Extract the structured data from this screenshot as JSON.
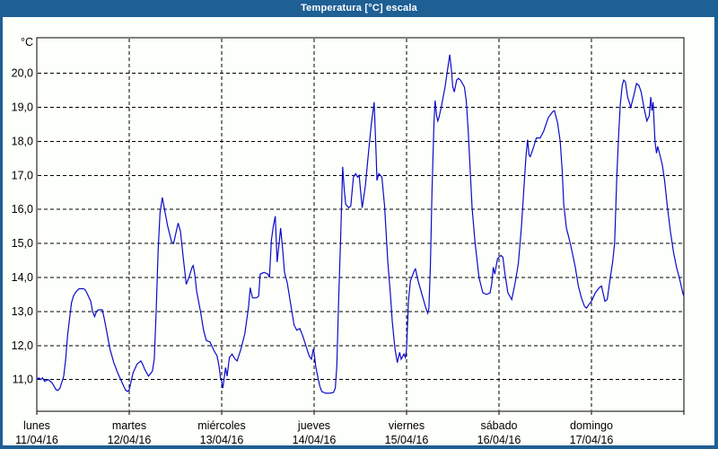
{
  "window": {
    "title": "Temperatura [°C] escala",
    "frame_color": "#1E5F94",
    "background": "#FDFFFA"
  },
  "chart_data": {
    "type": "line",
    "title": "Temperatura [°C] escala",
    "unit_label": "°C",
    "line_color": "#0B0BCB",
    "grid_color": "#000000",
    "x_hours_range": [
      0,
      168
    ],
    "ylim": [
      10.05,
      21.05
    ],
    "grid": true,
    "y_ticks": [
      {
        "value": 11,
        "label": "11,0"
      },
      {
        "value": 12,
        "label": "12,0"
      },
      {
        "value": 13,
        "label": "13,0"
      },
      {
        "value": 14,
        "label": "14,0"
      },
      {
        "value": 15,
        "label": "15,0"
      },
      {
        "value": 16,
        "label": "16,0"
      },
      {
        "value": 17,
        "label": "17,0"
      },
      {
        "value": 18,
        "label": "18,0"
      },
      {
        "value": 19,
        "label": "19,0"
      },
      {
        "value": 20,
        "label": "20,0"
      }
    ],
    "days": [
      {
        "name": "lunes",
        "date": "11/04/16"
      },
      {
        "name": "martes",
        "date": "12/04/16"
      },
      {
        "name": "miércoles",
        "date": "13/04/16"
      },
      {
        "name": "jueves",
        "date": "14/04/16"
      },
      {
        "name": "viernes",
        "date": "15/04/16"
      },
      {
        "name": "sábado",
        "date": "16/04/16"
      },
      {
        "name": "domingo",
        "date": "17/04/16"
      }
    ],
    "points": [
      [
        0,
        11.0
      ],
      [
        0.5,
        11.05
      ],
      [
        1,
        11.0
      ],
      [
        1.5,
        11.05
      ],
      [
        2,
        10.95
      ],
      [
        3,
        11.0
      ],
      [
        4,
        10.9
      ],
      [
        5,
        10.7
      ],
      [
        5.5,
        10.68
      ],
      [
        6,
        10.75
      ],
      [
        7,
        11.1
      ],
      [
        7.5,
        11.6
      ],
      [
        8,
        12.3
      ],
      [
        9,
        13.25
      ],
      [
        9.5,
        13.45
      ],
      [
        10,
        13.55
      ],
      [
        10.5,
        13.62
      ],
      [
        11,
        13.67
      ],
      [
        12,
        13.67
      ],
      [
        12.5,
        13.65
      ],
      [
        13,
        13.55
      ],
      [
        14,
        13.3
      ],
      [
        14.5,
        13.0
      ],
      [
        15,
        12.85
      ],
      [
        15.5,
        13.0
      ],
      [
        16,
        13.05
      ],
      [
        17,
        13.05
      ],
      [
        17.5,
        12.8
      ],
      [
        18,
        12.5
      ],
      [
        19,
        11.9
      ],
      [
        20,
        11.5
      ],
      [
        21,
        11.2
      ],
      [
        22,
        10.95
      ],
      [
        23,
        10.7
      ],
      [
        23.5,
        10.65
      ],
      [
        24,
        10.7
      ],
      [
        24.5,
        10.95
      ],
      [
        25,
        11.2
      ],
      [
        26,
        11.45
      ],
      [
        27,
        11.55
      ],
      [
        27.5,
        11.45
      ],
      [
        28,
        11.3
      ],
      [
        29,
        11.1
      ],
      [
        30,
        11.25
      ],
      [
        30.5,
        11.6
      ],
      [
        31,
        13.0
      ],
      [
        31.5,
        14.8
      ],
      [
        32,
        15.9
      ],
      [
        32.6,
        16.35
      ],
      [
        33,
        16.1
      ],
      [
        34,
        15.5
      ],
      [
        35,
        15.05
      ],
      [
        35.5,
        15.0
      ],
      [
        36,
        15.25
      ],
      [
        36.7,
        15.6
      ],
      [
        37.3,
        15.35
      ],
      [
        38,
        14.6
      ],
      [
        38.8,
        13.8
      ],
      [
        39.5,
        14.0
      ],
      [
        40.3,
        14.3
      ],
      [
        40.6,
        14.35
      ],
      [
        41,
        14.1
      ],
      [
        41.5,
        13.6
      ],
      [
        42.5,
        13.0
      ],
      [
        43.3,
        12.45
      ],
      [
        44,
        12.15
      ],
      [
        45,
        12.1
      ],
      [
        46,
        11.85
      ],
      [
        46.8,
        11.7
      ],
      [
        47.3,
        11.4
      ],
      [
        47.7,
        11.05
      ],
      [
        48,
        10.95
      ],
      [
        48.3,
        10.75
      ],
      [
        49,
        11.35
      ],
      [
        49.4,
        11.1
      ],
      [
        50,
        11.65
      ],
      [
        50.7,
        11.75
      ],
      [
        51.5,
        11.6
      ],
      [
        52,
        11.55
      ],
      [
        53,
        11.9
      ],
      [
        54,
        12.35
      ],
      [
        55,
        13.15
      ],
      [
        55.4,
        13.7
      ],
      [
        56,
        13.4
      ],
      [
        57,
        13.4
      ],
      [
        57.6,
        13.45
      ],
      [
        58,
        14.1
      ],
      [
        59,
        14.15
      ],
      [
        60,
        14.1
      ],
      [
        60.4,
        14.0
      ],
      [
        60.9,
        15.1
      ],
      [
        61.4,
        15.5
      ],
      [
        61.9,
        15.8
      ],
      [
        62.4,
        14.45
      ],
      [
        63.3,
        15.45
      ],
      [
        63.9,
        14.75
      ],
      [
        64.3,
        14.15
      ],
      [
        65,
        13.85
      ],
      [
        66,
        13.15
      ],
      [
        66.8,
        12.6
      ],
      [
        67.5,
        12.45
      ],
      [
        68.3,
        12.5
      ],
      [
        69,
        12.3
      ],
      [
        70,
        11.95
      ],
      [
        70.7,
        11.7
      ],
      [
        71.3,
        11.6
      ],
      [
        71.8,
        11.9
      ],
      [
        72,
        11.8
      ],
      [
        72.4,
        11.4
      ],
      [
        73,
        11.05
      ],
      [
        73.5,
        10.8
      ],
      [
        74,
        10.65
      ],
      [
        75,
        10.6
      ],
      [
        76,
        10.6
      ],
      [
        77,
        10.62
      ],
      [
        77.5,
        10.75
      ],
      [
        77.9,
        11.4
      ],
      [
        78.4,
        13.5
      ],
      [
        78.9,
        15.2
      ],
      [
        79.4,
        17.25
      ],
      [
        79.8,
        16.6
      ],
      [
        80.2,
        16.15
      ],
      [
        81,
        16.05
      ],
      [
        81.5,
        16.1
      ],
      [
        82.2,
        16.95
      ],
      [
        82.8,
        17.05
      ],
      [
        83.3,
        16.95
      ],
      [
        83.7,
        17.0
      ],
      [
        84.1,
        16.5
      ],
      [
        84.5,
        16.05
      ],
      [
        85.3,
        16.7
      ],
      [
        86.1,
        17.65
      ],
      [
        86.9,
        18.55
      ],
      [
        87.6,
        19.15
      ],
      [
        88.1,
        17.6
      ],
      [
        88.3,
        16.85
      ],
      [
        88.8,
        17.05
      ],
      [
        89.6,
        16.95
      ],
      [
        90.3,
        16.1
      ],
      [
        91.1,
        14.5
      ],
      [
        91.8,
        13.5
      ],
      [
        92.3,
        12.7
      ],
      [
        93,
        11.9
      ],
      [
        93.6,
        11.5
      ],
      [
        94.2,
        11.8
      ],
      [
        94.6,
        11.6
      ],
      [
        95.3,
        11.75
      ],
      [
        95.7,
        11.65
      ],
      [
        96,
        11.9
      ],
      [
        96.5,
        13.3
      ],
      [
        97,
        13.9
      ],
      [
        98,
        14.2
      ],
      [
        98.3,
        14.25
      ],
      [
        99,
        13.9
      ],
      [
        100,
        13.5
      ],
      [
        101,
        13.1
      ],
      [
        101.5,
        12.95
      ],
      [
        101.8,
        13.1
      ],
      [
        102.2,
        14.4
      ],
      [
        102.6,
        16.5
      ],
      [
        103.1,
        18.5
      ],
      [
        103.4,
        19.2
      ],
      [
        103.8,
        18.75
      ],
      [
        104.1,
        18.6
      ],
      [
        104.4,
        18.7
      ],
      [
        105,
        19.0
      ],
      [
        106,
        19.6
      ],
      [
        107.2,
        20.55
      ],
      [
        107.6,
        20.15
      ],
      [
        108,
        19.6
      ],
      [
        108.4,
        19.45
      ],
      [
        109,
        19.8
      ],
      [
        109.5,
        19.85
      ],
      [
        110,
        19.8
      ],
      [
        111,
        19.6
      ],
      [
        111.5,
        19.2
      ],
      [
        112,
        18.3
      ],
      [
        112.5,
        17.2
      ],
      [
        113,
        16.05
      ],
      [
        113.8,
        15.0
      ],
      [
        114.8,
        14.0
      ],
      [
        115.8,
        13.55
      ],
      [
        116.8,
        13.5
      ],
      [
        117.7,
        13.55
      ],
      [
        118.1,
        13.8
      ],
      [
        118.5,
        14.3
      ],
      [
        118.9,
        14.1
      ],
      [
        119.6,
        14.55
      ],
      [
        120,
        14.6
      ],
      [
        120.5,
        14.65
      ],
      [
        121,
        14.6
      ],
      [
        121.5,
        14.15
      ],
      [
        122.3,
        13.55
      ],
      [
        123.3,
        13.35
      ],
      [
        124.2,
        13.85
      ],
      [
        125,
        14.4
      ],
      [
        125.8,
        15.45
      ],
      [
        126.6,
        16.85
      ],
      [
        127,
        17.55
      ],
      [
        127.4,
        18.05
      ],
      [
        127.8,
        17.6
      ],
      [
        128.1,
        17.55
      ],
      [
        128.9,
        17.8
      ],
      [
        129.7,
        18.1
      ],
      [
        130.7,
        18.1
      ],
      [
        131.6,
        18.3
      ],
      [
        132.8,
        18.7
      ],
      [
        134,
        18.88
      ],
      [
        134.4,
        18.9
      ],
      [
        135.2,
        18.55
      ],
      [
        135.9,
        18.0
      ],
      [
        136.4,
        17.15
      ],
      [
        136.8,
        16.15
      ],
      [
        137.5,
        15.45
      ],
      [
        138.3,
        15.1
      ],
      [
        139,
        14.75
      ],
      [
        139.8,
        14.3
      ],
      [
        140.6,
        13.75
      ],
      [
        141.4,
        13.4
      ],
      [
        142.2,
        13.15
      ],
      [
        142.7,
        13.1
      ],
      [
        143.3,
        13.2
      ],
      [
        144,
        13.3
      ],
      [
        145,
        13.55
      ],
      [
        146,
        13.7
      ],
      [
        146.6,
        13.75
      ],
      [
        147.5,
        13.3
      ],
      [
        148.1,
        13.35
      ],
      [
        148.7,
        13.85
      ],
      [
        149.5,
        14.45
      ],
      [
        150,
        15.0
      ],
      [
        150.6,
        17.0
      ],
      [
        151.1,
        18.3
      ],
      [
        151.5,
        19.1
      ],
      [
        152,
        19.65
      ],
      [
        152.4,
        19.8
      ],
      [
        152.8,
        19.75
      ],
      [
        153.4,
        19.3
      ],
      [
        154.2,
        19.0
      ],
      [
        155,
        19.35
      ],
      [
        155.7,
        19.7
      ],
      [
        156.3,
        19.65
      ],
      [
        156.9,
        19.45
      ],
      [
        157.7,
        18.95
      ],
      [
        158.4,
        18.6
      ],
      [
        159,
        18.75
      ],
      [
        159.4,
        19.3
      ],
      [
        159.7,
        18.9
      ],
      [
        160,
        19.15
      ],
      [
        160.5,
        18.0
      ],
      [
        160.9,
        17.65
      ],
      [
        161.2,
        17.85
      ],
      [
        161.9,
        17.55
      ],
      [
        162.4,
        17.3
      ],
      [
        163,
        16.85
      ],
      [
        163.7,
        16.1
      ],
      [
        164.5,
        15.35
      ],
      [
        165.3,
        14.75
      ],
      [
        166.1,
        14.3
      ],
      [
        166.9,
        13.95
      ],
      [
        167.7,
        13.55
      ],
      [
        168,
        13.45
      ]
    ]
  }
}
